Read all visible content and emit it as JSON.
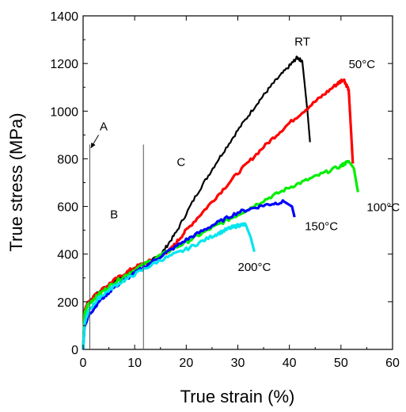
{
  "chart_data": {
    "type": "line",
    "xlabel": "True strain  (%)",
    "ylabel": "True stress  (MPa)",
    "xlim": [
      0,
      60
    ],
    "ylim": [
      0,
      1400
    ],
    "xticks": [
      0,
      10,
      20,
      30,
      40,
      50,
      60
    ],
    "yticks": [
      0,
      200,
      400,
      600,
      800,
      1000,
      1200,
      1400
    ],
    "grid": false,
    "series": [
      {
        "name": "RT",
        "color": "#000000",
        "x": [
          0,
          0.3,
          1,
          3,
          6,
          10,
          13,
          15,
          18,
          22,
          26,
          30,
          34,
          37,
          40,
          41.5,
          42.5,
          43.5,
          44
        ],
        "y": [
          0,
          150,
          200,
          240,
          285,
          340,
          370,
          395,
          490,
          650,
          790,
          920,
          1040,
          1120,
          1190,
          1225,
          1210,
          1000,
          870
        ]
      },
      {
        "name": "50°C",
        "color": "#ff0000",
        "x": [
          0,
          0.3,
          1,
          3,
          6,
          10,
          14,
          17,
          20,
          25,
          30,
          35,
          40,
          45,
          49,
          50.5,
          51.5,
          52,
          52.3
        ],
        "y": [
          0,
          160,
          200,
          240,
          290,
          345,
          380,
          420,
          500,
          620,
          740,
          850,
          950,
          1040,
          1110,
          1135,
          1090,
          900,
          780
        ]
      },
      {
        "name": "100°C",
        "color": "#00ee00",
        "x": [
          0,
          0.3,
          1,
          3,
          6,
          10,
          15,
          20,
          25,
          30,
          35,
          40,
          45,
          50,
          51.5,
          52.5,
          53.3
        ],
        "y": [
          0,
          150,
          190,
          230,
          280,
          335,
          395,
          450,
          510,
          565,
          625,
          680,
          725,
          770,
          790,
          760,
          660
        ]
      },
      {
        "name": "150°C",
        "color": "#0000ff",
        "x": [
          0,
          0.3,
          1,
          3,
          6,
          10,
          15,
          20,
          25,
          30,
          35,
          39,
          40.5,
          41
        ],
        "y": [
          0,
          100,
          140,
          200,
          260,
          320,
          390,
          460,
          520,
          575,
          605,
          620,
          600,
          555
        ]
      },
      {
        "name": "200°C",
        "color": "#00e5ee",
        "x": [
          0,
          0.3,
          1,
          3,
          6,
          10,
          15,
          20,
          25,
          28,
          30,
          31.5,
          32.5,
          33.2
        ],
        "y": [
          0,
          110,
          160,
          215,
          265,
          315,
          375,
          420,
          475,
          505,
          520,
          525,
          470,
          410
        ]
      }
    ],
    "series_labels": [
      {
        "text": "RT",
        "x": 41,
        "y": 1275,
        "color": "#000000"
      },
      {
        "text": "50°C",
        "x": 51.5,
        "y": 1180,
        "color": "#000000"
      },
      {
        "text": "100°C",
        "x": 55,
        "y": 580,
        "color": "#000000"
      },
      {
        "text": "150°C",
        "x": 43,
        "y": 500,
        "color": "#000000"
      },
      {
        "text": "200°C",
        "x": 30,
        "y": 330,
        "color": "#000000"
      }
    ],
    "vertical_lines": [
      1.3,
      11.7
    ],
    "vertical_lines_ymax": 860,
    "region_labels": [
      {
        "text": "A",
        "x": 4,
        "y": 920
      },
      {
        "text": "B",
        "x": 6,
        "y": 550
      },
      {
        "text": "C",
        "x": 19,
        "y": 770
      }
    ],
    "arrow": {
      "from": [
        3,
        900
      ],
      "to": [
        1.5,
        845
      ]
    }
  }
}
